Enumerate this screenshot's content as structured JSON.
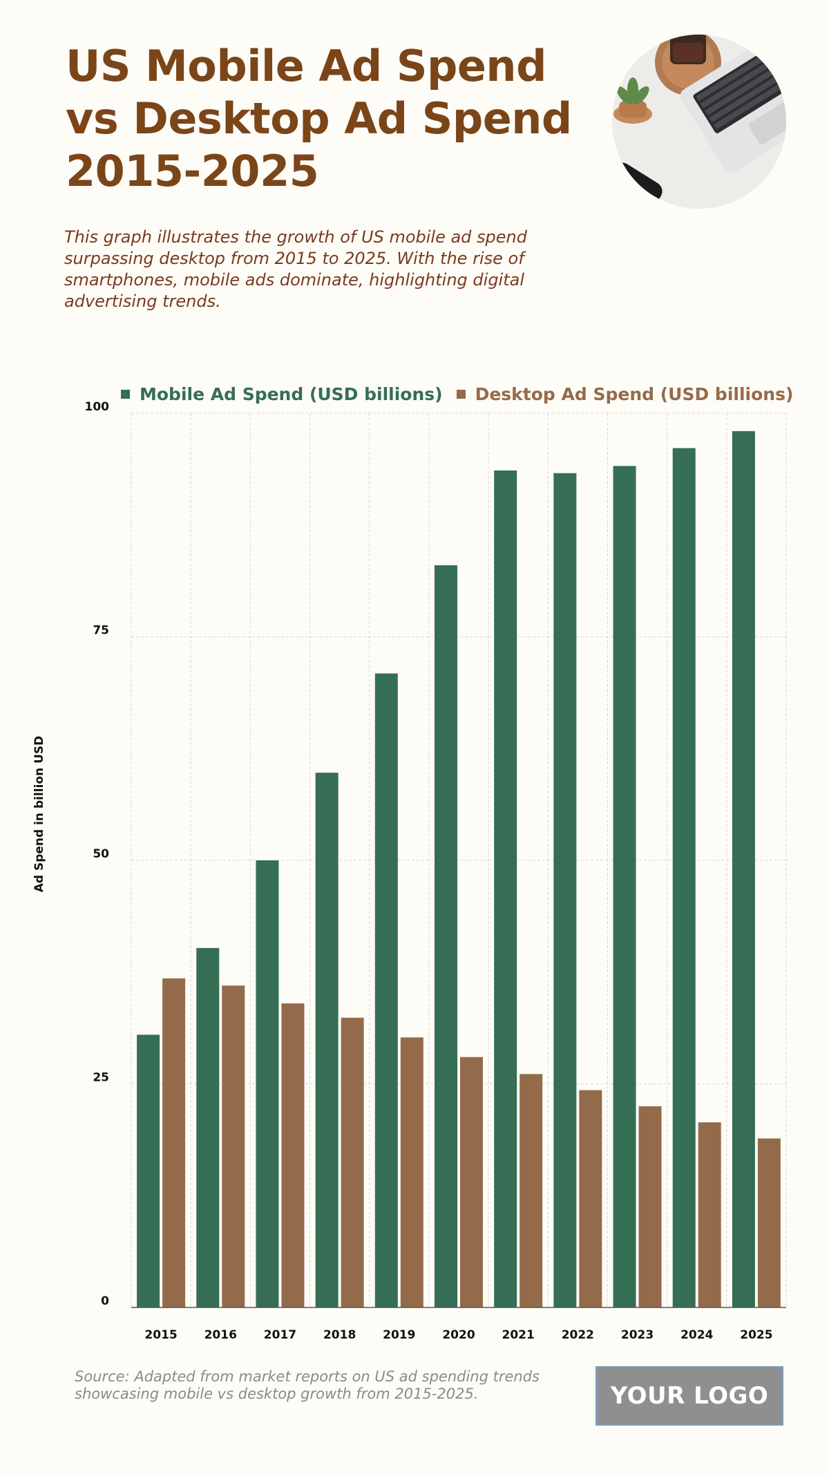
{
  "header": {
    "title": "US Mobile Ad Spend vs Desktop Ad Spend 2015-2025",
    "subtitle": "This graph illustrates the growth of US mobile ad spend surpassing desktop from 2015 to 2025. With the rise of smartphones, mobile ads dominate, highlighting digital advertising trends."
  },
  "footer": {
    "source": "Source: Adapted from market reports on US ad spending trends showcasing mobile vs desktop growth from 2015-2025.",
    "logo": "YOUR LOGO"
  },
  "colors": {
    "mobile": "#356e55",
    "desktop": "#946b4a",
    "title": "#7a4519",
    "grid": "#d6d6d6"
  },
  "chart_data": {
    "type": "bar",
    "categories": [
      "2015",
      "2016",
      "2017",
      "2018",
      "2019",
      "2020",
      "2021",
      "2022",
      "2023",
      "2024",
      "2025"
    ],
    "series": [
      {
        "name": "Mobile Ad Spend (USD billions)",
        "values": [
          30.5,
          40.2,
          50.0,
          59.8,
          70.9,
          83.0,
          93.6,
          93.3,
          94.1,
          96.1,
          98.0
        ]
      },
      {
        "name": "Desktop Ad Spend (USD billions)",
        "values": [
          36.8,
          36.0,
          34.0,
          32.4,
          30.2,
          28.0,
          26.1,
          24.3,
          22.5,
          20.7,
          18.9
        ]
      }
    ],
    "title": "US Mobile Ad Spend vs Desktop Ad Spend 2015-2025",
    "xlabel": "",
    "ylabel": "Ad Spend in billion USD",
    "ylim": [
      0,
      100
    ],
    "yticks": [
      "0",
      "25",
      "50",
      "75",
      "100"
    ],
    "grid": true,
    "legend": "top"
  }
}
